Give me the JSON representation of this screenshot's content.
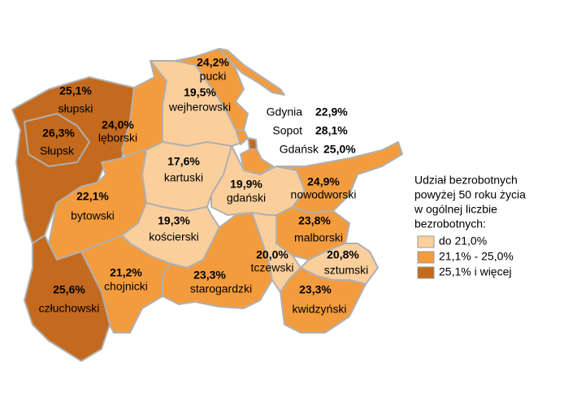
{
  "regions": [
    {
      "name": "słupski",
      "value": "25,1%",
      "color": "#c46a1e"
    },
    {
      "name": "Słupsk",
      "value": "26,3%",
      "color": "#c46a1e"
    },
    {
      "name": "lęborski",
      "value": "24,0%",
      "color": "#f39c3e"
    },
    {
      "name": "pucki",
      "value": "24,2%",
      "color": "#f39c3e"
    },
    {
      "name": "wejherowski",
      "value": "19,5%",
      "color": "#fbcf9c"
    },
    {
      "name": "kartuski",
      "value": "17,6%",
      "color": "#fbcf9c"
    },
    {
      "name": "gdański",
      "value": "19,9%",
      "color": "#fbcf9c"
    },
    {
      "name": "nowodworski",
      "value": "24,9%",
      "color": "#f39c3e"
    },
    {
      "name": "bytowski",
      "value": "22,1%",
      "color": "#f39c3e"
    },
    {
      "name": "kościerski",
      "value": "19,3%",
      "color": "#fbcf9c"
    },
    {
      "name": "malborski",
      "value": "23,8%",
      "color": "#f39c3e"
    },
    {
      "name": "chojnicki",
      "value": "21,2%",
      "color": "#f39c3e"
    },
    {
      "name": "starogardzki",
      "value": "23,3%",
      "color": "#f39c3e"
    },
    {
      "name": "tczewski",
      "value": "20,0%",
      "color": "#fbcf9c"
    },
    {
      "name": "sztumski",
      "value": "20,8%",
      "color": "#fbcf9c"
    },
    {
      "name": "kwidzyński",
      "value": "23,3%",
      "color": "#f39c3e"
    },
    {
      "name": "człuchowski",
      "value": "25,6%",
      "color": "#c46a1e"
    }
  ],
  "cities": [
    {
      "name": "Gdynia",
      "value": "22,9%",
      "color": "#f39c3e"
    },
    {
      "name": "Sopot",
      "value": "28,1%",
      "color": "#c46a1e"
    },
    {
      "name": "Gdańsk",
      "value": "25,0%",
      "color": "#f39c3e"
    }
  ],
  "legend": {
    "title": [
      "Udział bezrobotnych",
      "powyżej 50 roku życia",
      "w ogólnej liczbie",
      "bezrobotnych:"
    ],
    "items": [
      {
        "label": "do 21,0%",
        "color": "#fbcf9c"
      },
      {
        "label": "21,1% - 25,0%",
        "color": "#f39c3e"
      },
      {
        "label": "25,1% i więcej",
        "color": "#c46a1e"
      }
    ]
  }
}
